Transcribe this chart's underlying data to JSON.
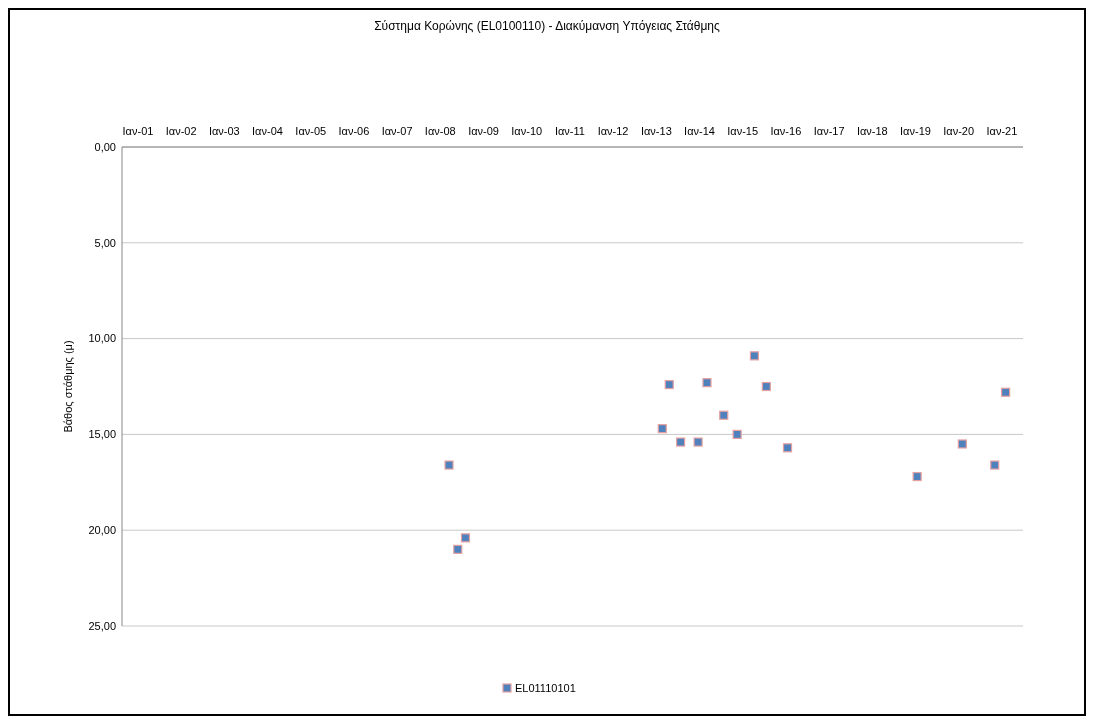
{
  "chart_data": {
    "type": "scatter",
    "title": "Σύστημα Κορώνης (EL0100110) - Διακύμανση Υπόγειας Στάθμης",
    "ylabel": "Βάθος στάθμης (μ)",
    "series": [
      {
        "name": "EL01110101",
        "color": "#4f81bd",
        "x": [
          "2008-03-15",
          "2008-05-28",
          "2008-08-01",
          "2013-02-20",
          "2013-04-20",
          "2013-07-25",
          "2013-12-20",
          "2014-03-05",
          "2014-07-25",
          "2014-11-15",
          "2015-04-10",
          "2015-07-20",
          "2016-01-15",
          "2019-01-15",
          "2020-02-01",
          "2020-11-01",
          "2021-02-01"
        ],
        "values": [
          16.6,
          21.0,
          20.4,
          14.7,
          12.4,
          15.4,
          15.4,
          12.3,
          14.0,
          15.0,
          10.9,
          12.5,
          15.7,
          17.2,
          15.5,
          16.6,
          12.8
        ]
      }
    ],
    "xlim": [
      "2000-08-19",
      "2021-06-28"
    ],
    "xticks": [
      {
        "value": "2001-01-01",
        "label": "Ιαν-01"
      },
      {
        "value": "2002-01-01",
        "label": "Ιαν-02"
      },
      {
        "value": "2003-01-01",
        "label": "Ιαν-03"
      },
      {
        "value": "2004-01-01",
        "label": "Ιαν-04"
      },
      {
        "value": "2005-01-01",
        "label": "Ιαν-05"
      },
      {
        "value": "2006-01-01",
        "label": "Ιαν-06"
      },
      {
        "value": "2007-01-01",
        "label": "Ιαν-07"
      },
      {
        "value": "2008-01-01",
        "label": "Ιαν-08"
      },
      {
        "value": "2009-01-01",
        "label": "Ιαν-09"
      },
      {
        "value": "2010-01-01",
        "label": "Ιαν-10"
      },
      {
        "value": "2011-01-01",
        "label": "Ιαν-11"
      },
      {
        "value": "2012-01-01",
        "label": "Ιαν-12"
      },
      {
        "value": "2013-01-01",
        "label": "Ιαν-13"
      },
      {
        "value": "2014-01-01",
        "label": "Ιαν-14"
      },
      {
        "value": "2015-01-01",
        "label": "Ιαν-15"
      },
      {
        "value": "2016-01-01",
        "label": "Ιαν-16"
      },
      {
        "value": "2017-01-01",
        "label": "Ιαν-17"
      },
      {
        "value": "2018-01-01",
        "label": "Ιαν-18"
      },
      {
        "value": "2019-01-01",
        "label": "Ιαν-19"
      },
      {
        "value": "2020-01-01",
        "label": "Ιαν-20"
      },
      {
        "value": "2021-01-01",
        "label": "Ιαν-21"
      }
    ],
    "ylim": [
      25,
      0
    ],
    "yticks": [
      {
        "value": 0,
        "label": "0,00"
      },
      {
        "value": 5,
        "label": "5,00"
      },
      {
        "value": 10,
        "label": "10,00"
      },
      {
        "value": 15,
        "label": "15,00"
      },
      {
        "value": 20,
        "label": "20,00"
      },
      {
        "value": 25,
        "label": "25,00"
      }
    ],
    "grid": "y",
    "legend": "bottom",
    "marker": "square"
  }
}
